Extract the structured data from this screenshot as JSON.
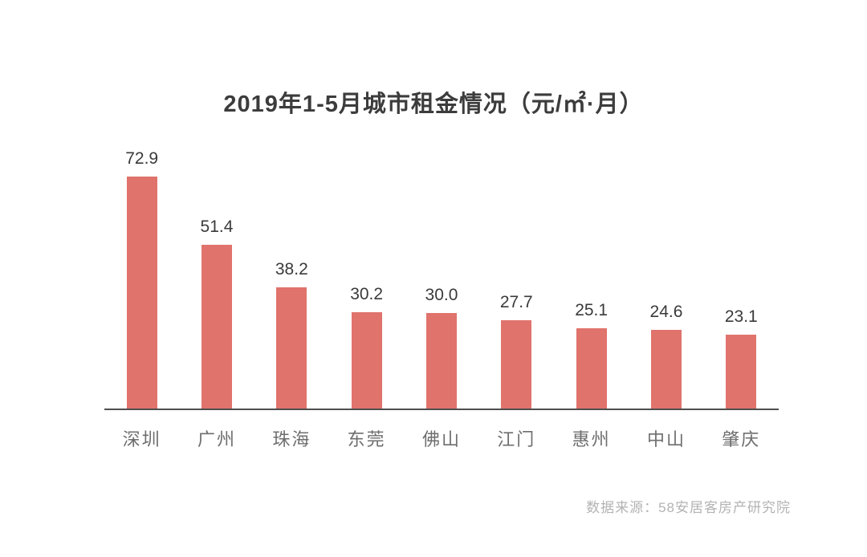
{
  "chart_data": {
    "type": "bar",
    "title": "2019年1-5月城市租金情况（元/㎡·月）",
    "categories": [
      "深圳",
      "广州",
      "珠海",
      "东莞",
      "佛山",
      "江门",
      "惠州",
      "中山",
      "肇庆"
    ],
    "values": [
      72.9,
      51.4,
      38.2,
      30.2,
      30.0,
      27.7,
      25.1,
      24.6,
      23.1
    ],
    "value_labels": [
      "72.9",
      "51.4",
      "38.2",
      "30.2",
      "30.0",
      "27.7",
      "25.1",
      "24.6",
      "23.1"
    ],
    "source": "数据来源：58安居客房产研究院",
    "xlabel": "",
    "ylabel": "",
    "ylim": [
      0,
      80
    ],
    "grid": false,
    "legend_position": "none",
    "bar_color": "#e0736c",
    "axis_line_color": "#4f4f4f",
    "title_color": "#3c3c3c",
    "value_label_color": "#3a3a3a",
    "category_label_color": "#6e6e6e",
    "source_color": "#b3b3b3",
    "background_color": "#ffffff"
  }
}
